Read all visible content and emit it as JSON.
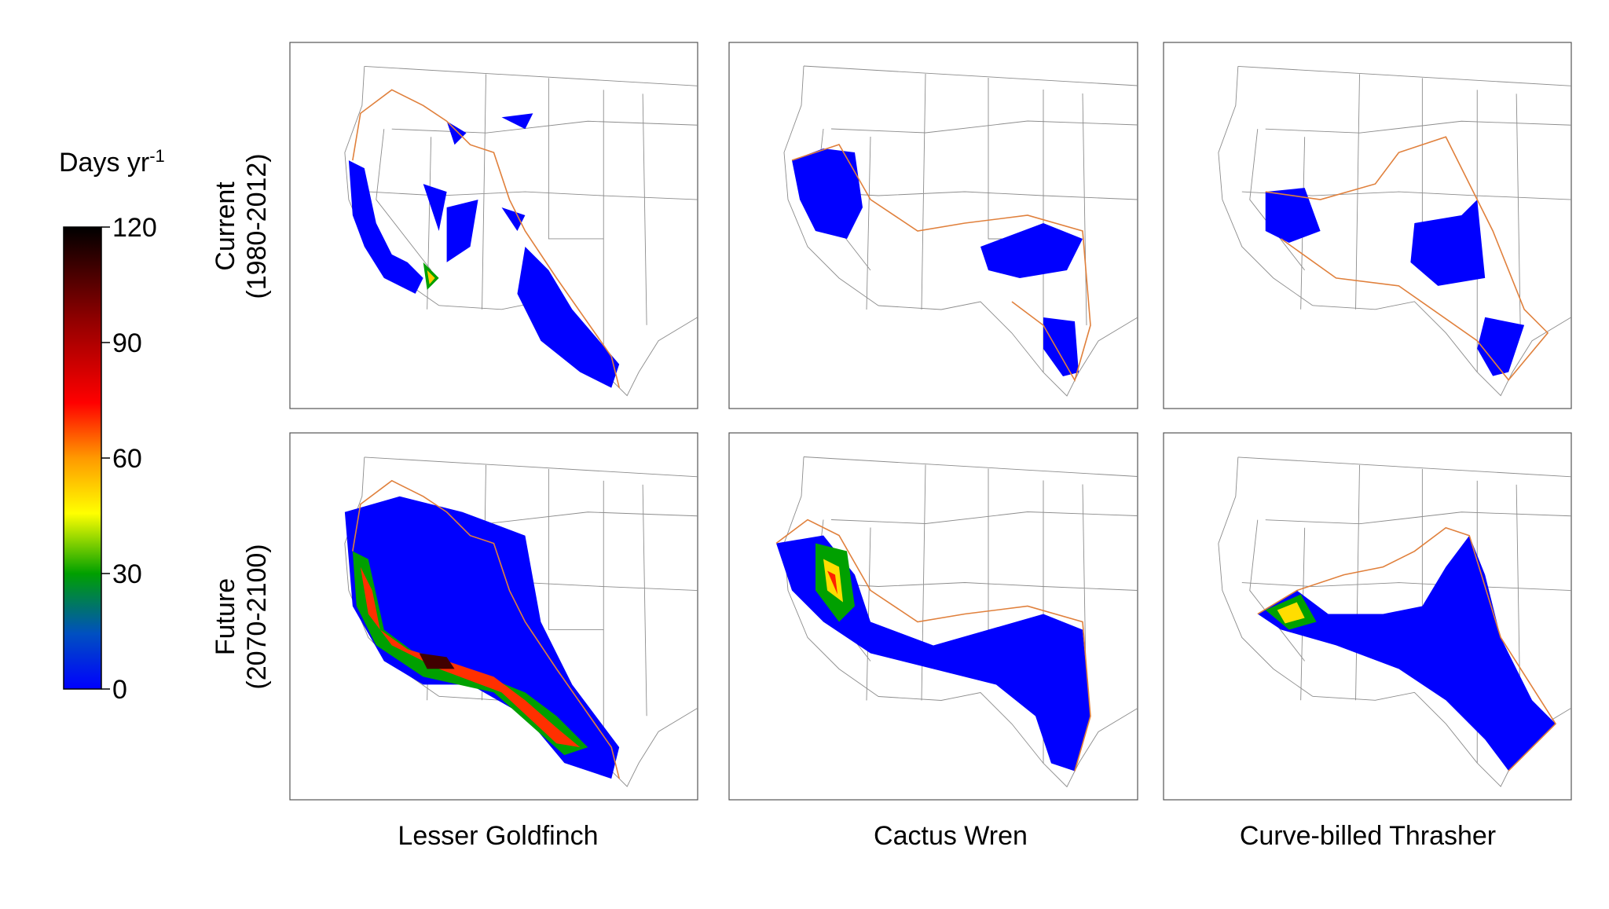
{
  "colorbar": {
    "label": "Days yr",
    "label_superscript": "-1",
    "range": [
      0,
      120
    ],
    "ticks": [
      0,
      30,
      60,
      90,
      120
    ]
  },
  "rows": [
    {
      "label": "Current",
      "period": "(1980-2012)"
    },
    {
      "label": "Future",
      "period": "(2070-2100)"
    }
  ],
  "columns": [
    "Lesser Goldfinch",
    "Cactus Wren",
    "Curve-billed Thrasher"
  ]
}
